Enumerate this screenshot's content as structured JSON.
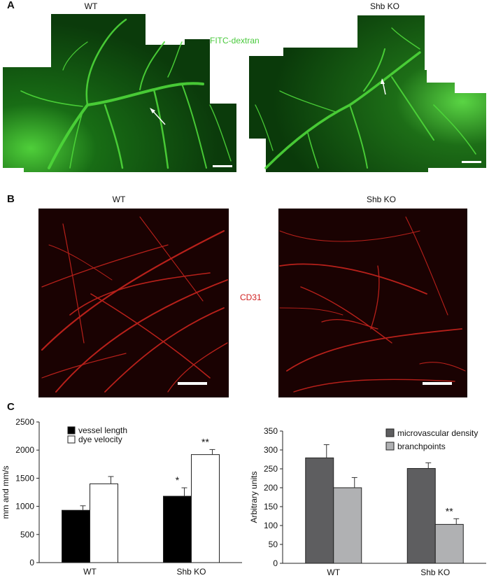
{
  "panelA": {
    "label": "A",
    "left_caption": "WT",
    "right_caption": "Shb KO",
    "stain": "FITC-dextran"
  },
  "panelB": {
    "label": "B",
    "left_caption": "WT",
    "right_caption": "Shb KO",
    "stain": "CD31"
  },
  "panelC": {
    "label": "C"
  },
  "chart_data": [
    {
      "type": "bar",
      "categories": [
        "WT",
        "Shb KO"
      ],
      "series": [
        {
          "name": "vessel length",
          "values": [
            930,
            1180
          ],
          "errors": [
            80,
            150
          ],
          "color": "#000000",
          "sig": [
            "",
            "*"
          ]
        },
        {
          "name": "dye velocity",
          "values": [
            1400,
            1920
          ],
          "errors": [
            130,
            90
          ],
          "color": "#ffffff",
          "sig": [
            "",
            "**"
          ]
        }
      ],
      "ylabel": "mm and mm/s",
      "ylim": [
        0,
        2500
      ],
      "yticks": [
        0,
        500,
        1000,
        1500,
        2000,
        2500
      ],
      "legend": "top-left"
    },
    {
      "type": "bar",
      "categories": [
        "WT",
        "Shb KO"
      ],
      "series": [
        {
          "name": "microvascular density",
          "values": [
            279,
            251
          ],
          "errors": [
            35,
            15
          ],
          "color": "#5e5e60",
          "sig": [
            "",
            ""
          ]
        },
        {
          "name": "branchpoints",
          "values": [
            200,
            103
          ],
          "errors": [
            27,
            15
          ],
          "color": "#b0b1b3",
          "sig": [
            "",
            "**"
          ]
        }
      ],
      "ylabel": "Arbitrary units",
      "ylim": [
        0,
        350
      ],
      "yticks": [
        0,
        50,
        100,
        150,
        200,
        250,
        300,
        350
      ],
      "legend": "top-right"
    }
  ]
}
